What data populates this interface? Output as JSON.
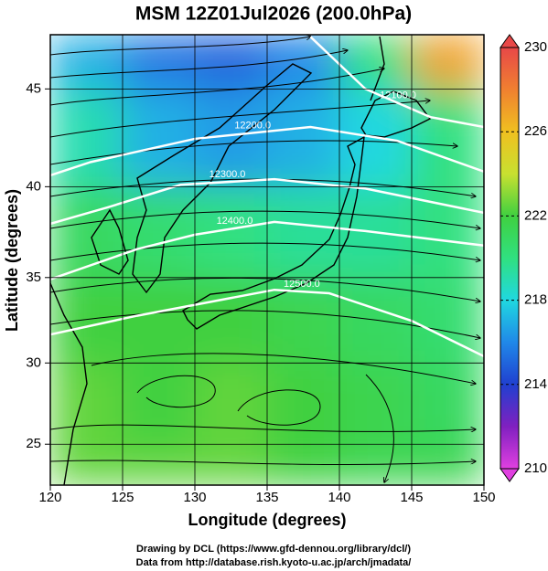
{
  "chart_data": {
    "type": "heatmap",
    "title": "MSM 12Z01Jul2026 (200.0hPa)",
    "xlabel": "Longitude (degrees)",
    "ylabel": "Latitude  (degrees)",
    "notes": [
      "Drawing by DCL (https://www.gfd-dennou.org/library/dcl/)",
      "Data from http://database.rish.kyoto-u.ac.jp/arch/jmadata/"
    ],
    "projection": "mercator",
    "xlim": [
      120,
      150
    ],
    "ylim": [
      22.4,
      47.6
    ],
    "xticks": [
      120,
      125,
      130,
      135,
      140,
      145,
      150
    ],
    "yticks": [
      25,
      30,
      35,
      40,
      45
    ],
    "grid": true,
    "field": {
      "lon_edges": [
        120,
        125,
        130,
        135,
        140,
        145,
        150
      ],
      "lat_edges": [
        22.4,
        25,
        30,
        35,
        40,
        45,
        47.6
      ],
      "values": [
        [
          222.5,
          222.5,
          222.5,
          222,
          221.5,
          221.5
        ],
        [
          222.5,
          222,
          222.5,
          222,
          221.5,
          221
        ],
        [
          222,
          222,
          222,
          221.5,
          221,
          220.5
        ],
        [
          221,
          220.5,
          220,
          219.5,
          219.5,
          220
        ],
        [
          219,
          217,
          216.5,
          217,
          218,
          220
        ],
        [
          217,
          215.5,
          215,
          216,
          220,
          227
        ]
      ]
    },
    "colorbar": {
      "lim": [
        210,
        230
      ],
      "ticks": [
        210,
        214,
        218,
        222,
        226,
        230
      ],
      "stops": [
        {
          "value": 210,
          "color": "#e040e0"
        },
        {
          "value": 212,
          "color": "#8020c0"
        },
        {
          "value": 214,
          "color": "#2040d0"
        },
        {
          "value": 216,
          "color": "#2088e8"
        },
        {
          "value": 218,
          "color": "#20d8e0"
        },
        {
          "value": 220,
          "color": "#30e080"
        },
        {
          "value": 222,
          "color": "#40d040"
        },
        {
          "value": 224,
          "color": "#c8e030"
        },
        {
          "value": 226,
          "color": "#f0c020"
        },
        {
          "value": 228,
          "color": "#f08030"
        },
        {
          "value": 230,
          "color": "#e84848"
        }
      ]
    },
    "contours": [
      {
        "level": 12100,
        "label": "12100.0",
        "lon": [
          138,
          141.8,
          146.3,
          150
        ],
        "lat": [
          47.5,
          45.0,
          43.6,
          43.1
        ]
      },
      {
        "level": 12200,
        "label": "12200.0",
        "lon": [
          120,
          122.8,
          130,
          138,
          144,
          150
        ],
        "lat": [
          40.6,
          41.3,
          42.5,
          43.1,
          42.4,
          40.8
        ]
      },
      {
        "level": 12300,
        "label": "12300.0",
        "lon": [
          120,
          124,
          129,
          135.5,
          141.8,
          150
        ],
        "lat": [
          38.0,
          38.9,
          40.1,
          40.4,
          39.9,
          38.6
        ]
      },
      {
        "level": 12400,
        "label": "12400.0",
        "lon": [
          120,
          126,
          130,
          135.5,
          141.8,
          150
        ],
        "lat": [
          34.9,
          36.6,
          37.4,
          38.1,
          37.6,
          36.8
        ]
      },
      {
        "level": 12500,
        "label": "12500.0",
        "lon": [
          120,
          126,
          135.5,
          139.3,
          145,
          150
        ],
        "lat": [
          31.7,
          32.8,
          34.3,
          34.1,
          32.5,
          30.4
        ]
      }
    ]
  }
}
